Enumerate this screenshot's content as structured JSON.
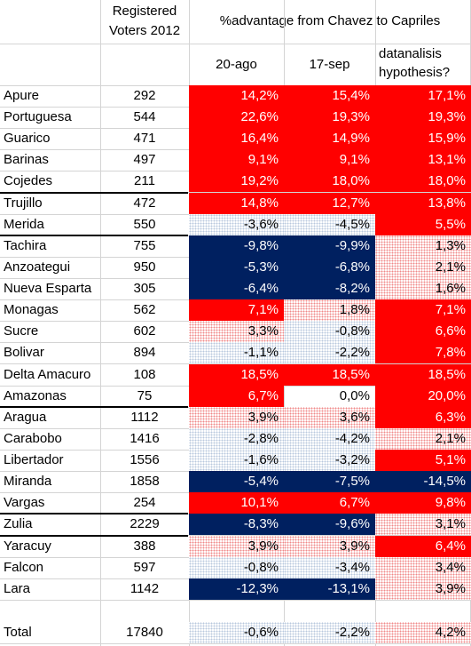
{
  "header": {
    "voters_line1": "Registered",
    "voters_line2": "Voters 2012",
    "advantage_title": "%advantage from Chavez to Capriles",
    "col_a": "20-ago",
    "col_b": "17-sep",
    "col_c_line1": "datanalisis",
    "col_c_line2": "hypothesis?"
  },
  "colors": {
    "red": "#ff0000",
    "navy": "#002060",
    "pink_dots": "#f08a8a",
    "blue_dots": "#b9c8de"
  },
  "rows": [
    {
      "name": "Apure",
      "voters": "292",
      "a": "14,2%",
      "b": "15,4%",
      "c": "17,1%",
      "fa": "red",
      "fb": "red",
      "fc": "red"
    },
    {
      "name": "Portuguesa",
      "voters": "544",
      "a": "22,6%",
      "b": "19,3%",
      "c": "19,3%",
      "fa": "red",
      "fb": "red",
      "fc": "red"
    },
    {
      "name": "Guarico",
      "voters": "471",
      "a": "16,4%",
      "b": "14,9%",
      "c": "15,9%",
      "fa": "red",
      "fb": "red",
      "fc": "red"
    },
    {
      "name": "Barinas",
      "voters": "497",
      "a": "9,1%",
      "b": "9,1%",
      "c": "13,1%",
      "fa": "red",
      "fb": "red",
      "fc": "red"
    },
    {
      "name": "Cojedes",
      "voters": "211",
      "a": "19,2%",
      "b": "18,0%",
      "c": "18,0%",
      "fa": "red",
      "fb": "red",
      "fc": "red"
    },
    {
      "name": "Trujillo",
      "voters": "472",
      "a": "14,8%",
      "b": "12,7%",
      "c": "13,8%",
      "fa": "red",
      "fb": "red",
      "fc": "red"
    },
    {
      "name": "Merida",
      "voters": "550",
      "a": "-3,6%",
      "b": "-4,5%",
      "c": "5,5%",
      "fa": "blue",
      "fb": "blue",
      "fc": "red"
    },
    {
      "name": "Tachira",
      "voters": "755",
      "a": "-9,8%",
      "b": "-9,9%",
      "c": "1,3%",
      "fa": "navy",
      "fb": "navy",
      "fc": "pink"
    },
    {
      "name": "Anzoategui",
      "voters": "950",
      "a": "-5,3%",
      "b": "-6,8%",
      "c": "2,1%",
      "fa": "navy",
      "fb": "navy",
      "fc": "pink"
    },
    {
      "name": "Nueva Esparta",
      "voters": "305",
      "a": "-6,4%",
      "b": "-8,2%",
      "c": "1,6%",
      "fa": "navy",
      "fb": "navy",
      "fc": "pink"
    },
    {
      "name": "Monagas",
      "voters": "562",
      "a": "7,1%",
      "b": "1,8%",
      "c": "7,1%",
      "fa": "red",
      "fb": "pink",
      "fc": "red"
    },
    {
      "name": "Sucre",
      "voters": "602",
      "a": "3,3%",
      "b": "-0,8%",
      "c": "6,6%",
      "fa": "pink",
      "fb": "blue",
      "fc": "red"
    },
    {
      "name": "Bolivar",
      "voters": "894",
      "a": "-1,1%",
      "b": "-2,2%",
      "c": "7,8%",
      "fa": "blue",
      "fb": "blue",
      "fc": "red"
    },
    {
      "name": "Delta Amacuro",
      "voters": "108",
      "a": "18,5%",
      "b": "18,5%",
      "c": "18,5%",
      "fa": "red",
      "fb": "red",
      "fc": "red"
    },
    {
      "name": "Amazonas",
      "voters": "75",
      "a": "6,7%",
      "b": "0,0%",
      "c": "20,0%",
      "fa": "red",
      "fb": "none",
      "fc": "red"
    },
    {
      "name": "Aragua",
      "voters": "1112",
      "a": "3,9%",
      "b": "3,6%",
      "c": "6,3%",
      "fa": "pink",
      "fb": "pink",
      "fc": "red"
    },
    {
      "name": "Carabobo",
      "voters": "1416",
      "a": "-2,8%",
      "b": "-4,2%",
      "c": "2,1%",
      "fa": "blue",
      "fb": "blue",
      "fc": "pink"
    },
    {
      "name": "Libertador",
      "voters": "1556",
      "a": "-1,6%",
      "b": "-3,2%",
      "c": "5,1%",
      "fa": "blue",
      "fb": "blue",
      "fc": "red"
    },
    {
      "name": "Miranda",
      "voters": "1858",
      "a": "-5,4%",
      "b": "-7,5%",
      "c": "-14,5%",
      "fa": "navy",
      "fb": "navy",
      "fc": "navy"
    },
    {
      "name": "Vargas",
      "voters": "254",
      "a": "10,1%",
      "b": "6,7%",
      "c": "9,8%",
      "fa": "red",
      "fb": "red",
      "fc": "red"
    },
    {
      "name": "Zulia",
      "voters": "2229",
      "a": "-8,3%",
      "b": "-9,6%",
      "c": "3,1%",
      "fa": "navy",
      "fb": "navy",
      "fc": "pink"
    },
    {
      "name": "Yaracuy",
      "voters": "388",
      "a": "3,9%",
      "b": "3,9%",
      "c": "6,4%",
      "fa": "pink",
      "fb": "pink",
      "fc": "red"
    },
    {
      "name": "Falcon",
      "voters": "597",
      "a": "-0,8%",
      "b": "-3,4%",
      "c": "3,4%",
      "fa": "blue",
      "fb": "blue",
      "fc": "pink"
    },
    {
      "name": "Lara",
      "voters": "1142",
      "a": "-12,3%",
      "b": "-13,1%",
      "c": "3,9%",
      "fa": "navy",
      "fb": "navy",
      "fc": "pink"
    }
  ],
  "total": {
    "name": "Total",
    "voters": "17840",
    "a": "-0,6%",
    "b": "-2,2%",
    "c": "4,2%",
    "fa": "blue",
    "fb": "blue",
    "fc": "pink"
  }
}
